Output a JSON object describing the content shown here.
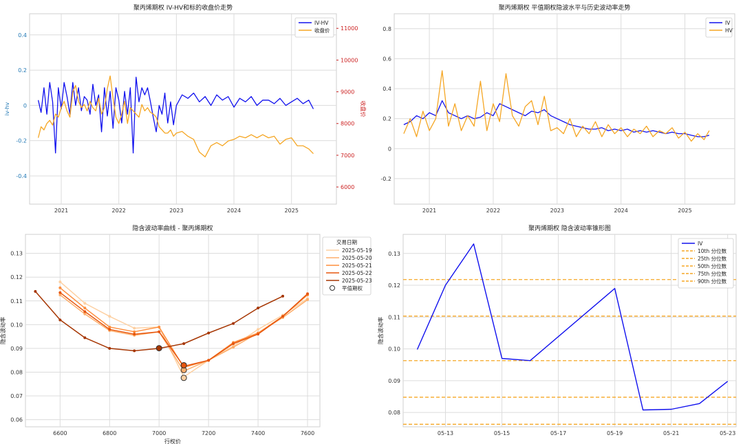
{
  "chart_data": [
    {
      "type": "line",
      "title": "聚丙烯期权 IV-HV和标的收盘价走势",
      "xlabel": "",
      "ylabel": "iv-hv",
      "y2label": "收盘价",
      "ylim": [
        -0.56,
        0.52
      ],
      "y2lim": [
        5460,
        11460
      ],
      "yticks": [
        -0.4,
        -0.2,
        0.0,
        0.2,
        0.4
      ],
      "y2ticks": [
        6000,
        7000,
        8000,
        9000,
        10000,
        11000
      ],
      "xlim": [
        2020.45,
        2025.78
      ],
      "xticks": [
        2021,
        2022,
        2023,
        2024,
        2025
      ],
      "xticklabels": [
        "2021",
        "2022",
        "2023",
        "2024",
        "2025"
      ],
      "grid": true,
      "legend_position": "top-right",
      "series": [
        {
          "name": "IV-HV",
          "color": "#1010ee",
          "axis": "left",
          "x": [
            2020.6,
            2020.65,
            2020.7,
            2020.75,
            2020.8,
            2020.85,
            2020.9,
            2020.95,
            2021.0,
            2021.05,
            2021.1,
            2021.15,
            2021.2,
            2021.25,
            2021.3,
            2021.35,
            2021.4,
            2021.45,
            2021.5,
            2021.55,
            2021.6,
            2021.65,
            2021.7,
            2021.75,
            2021.8,
            2021.85,
            2021.9,
            2021.95,
            2022.0,
            2022.05,
            2022.1,
            2022.15,
            2022.2,
            2022.25,
            2022.3,
            2022.35,
            2022.4,
            2022.45,
            2022.5,
            2022.55,
            2022.6,
            2022.65,
            2022.7,
            2022.75,
            2022.8,
            2022.85,
            2022.9,
            2022.95,
            2023.0,
            2023.1,
            2023.2,
            2023.3,
            2023.4,
            2023.5,
            2023.6,
            2023.7,
            2023.8,
            2023.9,
            2024.0,
            2024.1,
            2024.2,
            2024.3,
            2024.4,
            2024.5,
            2024.6,
            2024.7,
            2024.8,
            2024.9,
            2025.0,
            2025.1,
            2025.2,
            2025.3,
            2025.38
          ],
          "values": [
            0.03,
            -0.04,
            0.1,
            -0.05,
            0.13,
            0.02,
            -0.27,
            0.1,
            -0.02,
            0.13,
            0.05,
            -0.05,
            0.13,
            0.0,
            0.1,
            -0.03,
            0.05,
            0.03,
            -0.05,
            0.12,
            0.0,
            0.06,
            -0.15,
            0.1,
            -0.06,
            0.08,
            -0.13,
            0.1,
            0.03,
            -0.1,
            0.08,
            -0.05,
            0.1,
            -0.27,
            0.16,
            0.02,
            0.1,
            0.06,
            0.1,
            0.02,
            -0.07,
            -0.15,
            0.0,
            -0.05,
            0.07,
            -0.1,
            0.02,
            -0.11,
            0.0,
            0.06,
            0.04,
            0.07,
            0.02,
            0.05,
            0.0,
            0.06,
            0.03,
            0.05,
            -0.01,
            0.04,
            0.02,
            0.05,
            0.0,
            0.03,
            0.03,
            0.01,
            0.04,
            0.0,
            0.02,
            0.04,
            0.01,
            0.03,
            -0.02
          ]
        },
        {
          "name": "收盘价",
          "color": "#f5a623",
          "axis": "right",
          "x": [
            2020.6,
            2020.65,
            2020.7,
            2020.75,
            2020.8,
            2020.85,
            2020.9,
            2020.95,
            2021.0,
            2021.05,
            2021.1,
            2021.15,
            2021.2,
            2021.25,
            2021.3,
            2021.35,
            2021.4,
            2021.45,
            2021.5,
            2021.55,
            2021.6,
            2021.65,
            2021.7,
            2021.75,
            2021.8,
            2021.85,
            2021.9,
            2021.95,
            2022.0,
            2022.05,
            2022.1,
            2022.15,
            2022.2,
            2022.25,
            2022.3,
            2022.35,
            2022.4,
            2022.45,
            2022.5,
            2022.55,
            2022.6,
            2022.65,
            2022.7,
            2022.75,
            2022.8,
            2022.85,
            2022.9,
            2022.95,
            2023.0,
            2023.1,
            2023.2,
            2023.3,
            2023.4,
            2023.5,
            2023.6,
            2023.7,
            2023.8,
            2023.9,
            2024.0,
            2024.1,
            2024.2,
            2024.3,
            2024.4,
            2024.5,
            2024.6,
            2024.7,
            2024.8,
            2024.9,
            2025.0,
            2025.1,
            2025.2,
            2025.3,
            2025.38
          ],
          "values": [
            7550,
            7900,
            7800,
            8000,
            8100,
            7950,
            8300,
            8200,
            8500,
            8700,
            8400,
            8200,
            9000,
            9200,
            8700,
            8500,
            8600,
            8400,
            8700,
            8500,
            8400,
            8800,
            8300,
            8500,
            9100,
            9500,
            8800,
            8200,
            8000,
            8300,
            8700,
            8000,
            8500,
            8400,
            8300,
            8200,
            8600,
            8400,
            8500,
            8350,
            8300,
            8200,
            7900,
            7800,
            7700,
            7700,
            7800,
            7600,
            7700,
            7750,
            7600,
            7500,
            7100,
            6950,
            7300,
            7400,
            7300,
            7450,
            7500,
            7600,
            7550,
            7650,
            7550,
            7650,
            7550,
            7600,
            7350,
            7500,
            7550,
            7300,
            7300,
            7200,
            7050
          ]
        }
      ]
    },
    {
      "type": "line",
      "title": "聚丙烯期权 平值期权隐波水平与历史波动率走势",
      "xlabel": "",
      "ylabel": "",
      "ylim": [
        -0.37,
        0.9
      ],
      "yticks": [
        -0.2,
        0.0,
        0.2,
        0.4,
        0.6,
        0.8
      ],
      "xlim": [
        2020.45,
        2025.78
      ],
      "xticks": [
        2021,
        2022,
        2023,
        2024,
        2025
      ],
      "xticklabels": [
        "2021",
        "2022",
        "2023",
        "2024",
        "2025"
      ],
      "grid": true,
      "legend_position": "top-right",
      "series": [
        {
          "name": "IV",
          "color": "#1010ee",
          "x": [
            2020.6,
            2020.7,
            2020.8,
            2020.9,
            2021.0,
            2021.1,
            2021.2,
            2021.3,
            2021.4,
            2021.5,
            2021.6,
            2021.7,
            2021.8,
            2021.9,
            2022.0,
            2022.1,
            2022.2,
            2022.3,
            2022.4,
            2022.5,
            2022.6,
            2022.7,
            2022.8,
            2022.9,
            2023.0,
            2023.1,
            2023.2,
            2023.3,
            2023.4,
            2023.5,
            2023.6,
            2023.7,
            2023.8,
            2023.9,
            2024.0,
            2024.1,
            2024.2,
            2024.3,
            2024.4,
            2024.5,
            2024.6,
            2024.7,
            2024.8,
            2024.9,
            2025.0,
            2025.1,
            2025.2,
            2025.3,
            2025.38
          ],
          "values": [
            0.16,
            0.18,
            0.22,
            0.2,
            0.24,
            0.22,
            0.32,
            0.24,
            0.22,
            0.2,
            0.22,
            0.2,
            0.21,
            0.24,
            0.22,
            0.3,
            0.28,
            0.26,
            0.24,
            0.22,
            0.25,
            0.24,
            0.26,
            0.22,
            0.2,
            0.18,
            0.16,
            0.15,
            0.14,
            0.13,
            0.13,
            0.14,
            0.12,
            0.13,
            0.12,
            0.13,
            0.11,
            0.12,
            0.11,
            0.12,
            0.11,
            0.1,
            0.11,
            0.1,
            0.1,
            0.09,
            0.08,
            0.08,
            0.09
          ]
        },
        {
          "name": "HV",
          "color": "#f5a623",
          "x": [
            2020.6,
            2020.7,
            2020.8,
            2020.9,
            2021.0,
            2021.1,
            2021.2,
            2021.3,
            2021.4,
            2021.5,
            2021.6,
            2021.7,
            2021.8,
            2021.9,
            2022.0,
            2022.1,
            2022.2,
            2022.3,
            2022.4,
            2022.5,
            2022.6,
            2022.7,
            2022.8,
            2022.9,
            2023.0,
            2023.1,
            2023.2,
            2023.3,
            2023.4,
            2023.5,
            2023.6,
            2023.7,
            2023.8,
            2023.9,
            2024.0,
            2024.1,
            2024.2,
            2024.3,
            2024.4,
            2024.5,
            2024.6,
            2024.7,
            2024.8,
            2024.9,
            2025.0,
            2025.1,
            2025.2,
            2025.3,
            2025.38
          ],
          "values": [
            0.1,
            0.2,
            0.08,
            0.25,
            0.12,
            0.2,
            0.52,
            0.15,
            0.3,
            0.12,
            0.22,
            0.15,
            0.45,
            0.12,
            0.3,
            0.18,
            0.5,
            0.22,
            0.15,
            0.28,
            0.32,
            0.16,
            0.35,
            0.12,
            0.14,
            0.1,
            0.2,
            0.08,
            0.15,
            0.1,
            0.18,
            0.08,
            0.16,
            0.1,
            0.14,
            0.08,
            0.13,
            0.1,
            0.15,
            0.08,
            0.12,
            0.1,
            0.14,
            0.07,
            0.11,
            0.05,
            0.1,
            0.06,
            0.12
          ]
        }
      ]
    },
    {
      "type": "line",
      "title": "隐含波动率曲线 - 聚丙烯期权",
      "xlabel": "行权价",
      "ylabel": "隐含波动率",
      "xlim": [
        6460,
        7650
      ],
      "ylim": [
        0.057,
        0.138
      ],
      "xticks": [
        6600,
        6800,
        7000,
        7200,
        7400,
        7600
      ],
      "yticks": [
        0.06,
        0.07,
        0.08,
        0.09,
        0.1,
        0.11,
        0.12,
        0.13
      ],
      "grid": true,
      "legend_position": "outside-right",
      "legend_title": "交易日期",
      "atm_label": "平值期权",
      "series": [
        {
          "name": "2025-05-19",
          "color": "#fdd0a2",
          "x": [
            6600,
            6700,
            6800,
            6900,
            7000,
            7100,
            7200,
            7300,
            7400,
            7500,
            7600
          ],
          "values": [
            0.118,
            0.109,
            0.1035,
            0.0985,
            0.099,
            0.078,
            0.085,
            0.091,
            0.098,
            0.104,
            0.111
          ],
          "atm": [
            7100,
            0.0776
          ]
        },
        {
          "name": "2025-05-20",
          "color": "#fdae6b",
          "x": [
            6600,
            6700,
            6800,
            6900,
            7000,
            7100,
            7200,
            7300,
            7400,
            7500,
            7600
          ],
          "values": [
            0.1125,
            0.1045,
            0.0975,
            0.0955,
            0.097,
            0.0805,
            0.085,
            0.0905,
            0.0965,
            0.103,
            0.1105
          ],
          "atm": [
            7100,
            0.0809
          ]
        },
        {
          "name": "2025-05-21",
          "color": "#fd8d3c",
          "x": [
            6600,
            6700,
            6800,
            6900,
            7000,
            7100,
            7200,
            7300,
            7400,
            7500,
            7600
          ],
          "values": [
            0.1155,
            0.107,
            0.099,
            0.097,
            0.099,
            0.082,
            0.085,
            0.0925,
            0.0965,
            0.1035,
            0.1125
          ],
          "atm": [
            7100,
            0.0829
          ]
        },
        {
          "name": "2025-05-22",
          "color": "#e6550d",
          "x": [
            6600,
            6700,
            6800,
            6900,
            7000,
            7100,
            7200,
            7300,
            7400,
            7500,
            7600
          ],
          "values": [
            0.1135,
            0.1055,
            0.098,
            0.096,
            0.097,
            0.0825,
            0.085,
            0.092,
            0.096,
            0.1035,
            0.113
          ],
          "atm": [
            7100,
            0.0829
          ]
        },
        {
          "name": "2025-05-23",
          "color": "#a63603",
          "x": [
            6500,
            6600,
            6700,
            6800,
            6900,
            7000,
            7100,
            7200,
            7300,
            7400,
            7500
          ],
          "values": [
            0.114,
            0.102,
            0.0945,
            0.09,
            0.089,
            0.09,
            0.092,
            0.0965,
            0.1005,
            0.107,
            0.112
          ],
          "atm": [
            7000,
            0.0901
          ]
        }
      ]
    },
    {
      "type": "line",
      "title": "聚丙烯期权 隐含波动率锥形图",
      "xlabel": "",
      "ylabel": "隐含波动率",
      "ylim": [
        0.0755,
        0.136
      ],
      "yticks": [
        0.08,
        0.09,
        0.1,
        0.11,
        0.12,
        0.13
      ],
      "xlim": [
        11.5,
        23.3
      ],
      "xticks": [
        13,
        15,
        17,
        19,
        21,
        23
      ],
      "xticklabels": [
        "05-13",
        "05-15",
        "05-17",
        "05-19",
        "05-21",
        "05-23"
      ],
      "grid": true,
      "legend_position": "top-right",
      "series": [
        {
          "name": "IV",
          "color": "#1010ee",
          "x": [
            12,
            13,
            14,
            15,
            16,
            19,
            20,
            21,
            22,
            23
          ],
          "values": [
            0.0998,
            0.12,
            0.133,
            0.097,
            0.0963,
            0.119,
            0.0808,
            0.081,
            0.0828,
            0.0898
          ]
        }
      ],
      "percentiles": [
        {
          "name": "10th 分位数",
          "value": 0.0763,
          "color": "#f5a623"
        },
        {
          "name": "25th 分位数",
          "value": 0.0848,
          "color": "#f5a623"
        },
        {
          "name": "50th 分位数",
          "value": 0.0963,
          "color": "#f5a623"
        },
        {
          "name": "75th 分位数",
          "value": 0.1103,
          "color": "#f5a623"
        },
        {
          "name": "90th 分位数",
          "value": 0.1218,
          "color": "#f5a623"
        }
      ]
    }
  ]
}
